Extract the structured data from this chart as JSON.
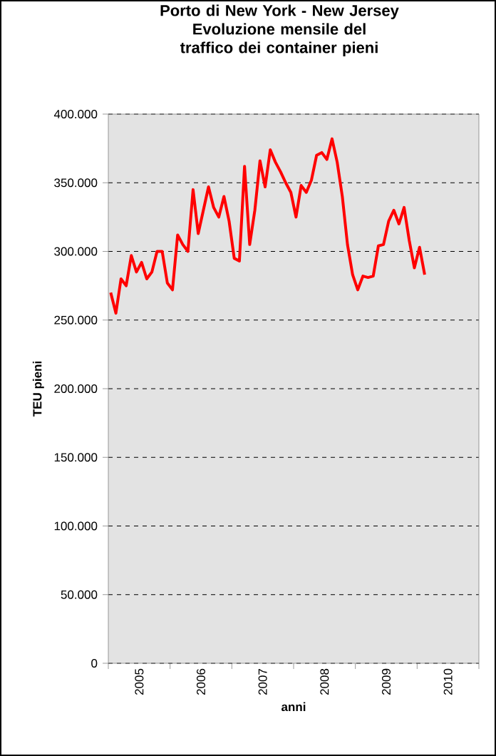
{
  "chart_data": {
    "type": "line",
    "title": "Porto di New York - New Jersey\nEvoluzione mensile del\ntraffico dei container pieni",
    "xlabel": "anni",
    "ylabel": "TEU pieni",
    "x": [
      "2005-01-15",
      "2005-02-15",
      "2005-03-15",
      "2005-04-15",
      "2005-05-15",
      "2005-06-15",
      "2005-07-15",
      "2005-08-15",
      "2005-09-15",
      "2005-10-15",
      "2005-11-15",
      "2005-12-15",
      "2006-01-15",
      "2006-02-15",
      "2006-03-15",
      "2006-04-15",
      "2006-05-15",
      "2006-06-15",
      "2006-07-15",
      "2006-08-15",
      "2006-09-15",
      "2006-10-15",
      "2006-11-15",
      "2006-12-15",
      "2007-01-15",
      "2007-02-15",
      "2007-03-15",
      "2007-04-15",
      "2007-05-15",
      "2007-06-15",
      "2007-07-15",
      "2007-08-15",
      "2007-09-15",
      "2007-10-15",
      "2007-11-15",
      "2007-12-15",
      "2008-01-15",
      "2008-02-15",
      "2008-03-15",
      "2008-04-15",
      "2008-05-15",
      "2008-06-15",
      "2008-07-15",
      "2008-08-15",
      "2008-09-15",
      "2008-10-15",
      "2008-11-15",
      "2008-12-15",
      "2009-01-15",
      "2009-02-15",
      "2009-03-15",
      "2009-04-15",
      "2009-05-15",
      "2009-06-15",
      "2009-07-15",
      "2009-08-15",
      "2009-09-15",
      "2009-10-15",
      "2009-11-15",
      "2009-12-15",
      "2010-01-15",
      "2010-02-15"
    ],
    "series": [
      {
        "color": "#ff0000",
        "values": [
          270000,
          255000,
          280000,
          275000,
          297000,
          285000,
          292000,
          280000,
          285000,
          300000,
          300000,
          277000,
          272000,
          312000,
          305000,
          300000,
          345000,
          313000,
          330000,
          347000,
          332000,
          325000,
          340000,
          322000,
          295000,
          293000,
          362000,
          305000,
          330000,
          366000,
          347000,
          374000,
          365000,
          358000,
          350000,
          343000,
          325000,
          348000,
          343000,
          352000,
          370000,
          372000,
          367000,
          382000,
          365000,
          340000,
          305000,
          283000,
          272000,
          282000,
          281000,
          282000,
          304000,
          305000,
          322000,
          330000,
          320000,
          332000,
          308000,
          288000,
          303000,
          283000
        ]
      }
    ],
    "xlim": [
      "2005-01-01",
      "2011-01-01"
    ],
    "xticks": [
      {
        "value": "2005-01-01",
        "label": null
      },
      {
        "value": "2006-01-01",
        "label": null
      },
      {
        "value": "2007-01-01",
        "label": null
      },
      {
        "value": "2008-01-01",
        "label": null
      },
      {
        "value": "2009-01-01",
        "label": null
      },
      {
        "value": "2010-01-01",
        "label": null
      },
      {
        "value": "2011-01-01",
        "label": null
      },
      {
        "value": "2005-07-01",
        "label": "2005"
      },
      {
        "value": "2006-07-01",
        "label": "2006"
      },
      {
        "value": "2007-07-01",
        "label": "2007"
      },
      {
        "value": "2008-07-01",
        "label": "2008"
      },
      {
        "value": "2009-07-01",
        "label": "2009"
      },
      {
        "value": "2010-07-01",
        "label": "2010"
      }
    ],
    "ylim": [
      0,
      400000
    ],
    "yticks": [
      {
        "value": 0,
        "label": "0"
      },
      {
        "value": 50000,
        "label": "50.000"
      },
      {
        "value": 100000,
        "label": "100.000"
      },
      {
        "value": 150000,
        "label": "150.000"
      },
      {
        "value": 200000,
        "label": "200.000"
      },
      {
        "value": 250000,
        "label": "250.000"
      },
      {
        "value": 300000,
        "label": "300.000"
      },
      {
        "value": 350000,
        "label": "350.000"
      },
      {
        "value": 400000,
        "label": "400.000"
      }
    ],
    "grid": "y",
    "line_style": "solid",
    "marker": "none"
  }
}
